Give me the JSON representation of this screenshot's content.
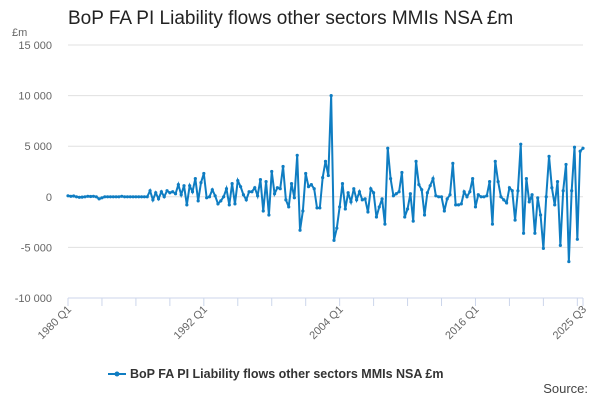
{
  "chart_data": {
    "type": "line",
    "title": "BoP FA PI Liability flows other sectors MMIs NSA £m",
    "ylabel": "£m",
    "xlabel": "",
    "ylim": [
      -10000,
      15000
    ],
    "yticks": [
      15000,
      10000,
      5000,
      0,
      -5000,
      -10000
    ],
    "ytick_labels": [
      "15 000",
      "10 000",
      "5 000",
      "0",
      "-5 000",
      "-10 000"
    ],
    "xtick_labels": [
      "1980 Q1",
      "1992 Q1",
      "2004 Q1",
      "2016 Q1",
      "2025 Q3"
    ],
    "xtick_indices": [
      0,
      48,
      96,
      144,
      182
    ],
    "x_start": "1980 Q1",
    "x_end": "2025 Q3",
    "grid": true,
    "legend_position": "bottom",
    "series": [
      {
        "name": "BoP FA PI Liability flows other sectors MMIs NSA £m",
        "color": "#0f7dc2",
        "values": [
          100,
          50,
          80,
          0,
          -50,
          -30,
          0,
          50,
          30,
          50,
          0,
          -200,
          -100,
          0,
          0,
          0,
          0,
          0,
          0,
          50,
          0,
          0,
          0,
          0,
          0,
          0,
          0,
          0,
          0,
          600,
          -300,
          400,
          -200,
          500,
          0,
          600,
          400,
          500,
          300,
          1200,
          200,
          1100,
          -800,
          1100,
          500,
          1800,
          -400,
          1400,
          2300,
          -100,
          0,
          700,
          100,
          -700,
          -400,
          0,
          800,
          -800,
          1300,
          -700,
          1600,
          1000,
          200,
          -300,
          500,
          500,
          900,
          100,
          1700,
          -1400,
          1500,
          -1800,
          2500,
          300,
          900,
          800,
          3000,
          -300,
          -1000,
          1300,
          -100,
          4100,
          -3300,
          -1400,
          2300,
          1000,
          1200,
          800,
          -1100,
          -1100,
          1900,
          3500,
          2100,
          10000,
          -4300,
          -3100,
          -1000,
          1300,
          -1200,
          400,
          -500,
          800,
          -300,
          500,
          -300,
          -200,
          -1500,
          800,
          400,
          -2000,
          -1000,
          -200,
          -2700,
          4800,
          1800,
          100,
          300,
          500,
          2400,
          -2000,
          -1200,
          300,
          -2400,
          3500,
          1200,
          700,
          -1800,
          400,
          1100,
          1800,
          100,
          0,
          0,
          -1400,
          -200,
          200,
          3300,
          -800,
          -800,
          -700,
          500,
          0,
          500,
          1800,
          -1000,
          200,
          0,
          0,
          100,
          1500,
          -2700,
          3500,
          1500,
          0,
          -300,
          -600,
          900,
          600,
          -2300,
          600,
          5200,
          -3600,
          1800,
          -500,
          200,
          -3600,
          -100,
          -1800,
          -5100,
          0,
          4000,
          900,
          -800,
          1500,
          -4800,
          600,
          3200,
          -6400,
          600,
          4900,
          -4200,
          4500,
          4800
        ]
      }
    ]
  },
  "source_label": "Source:"
}
